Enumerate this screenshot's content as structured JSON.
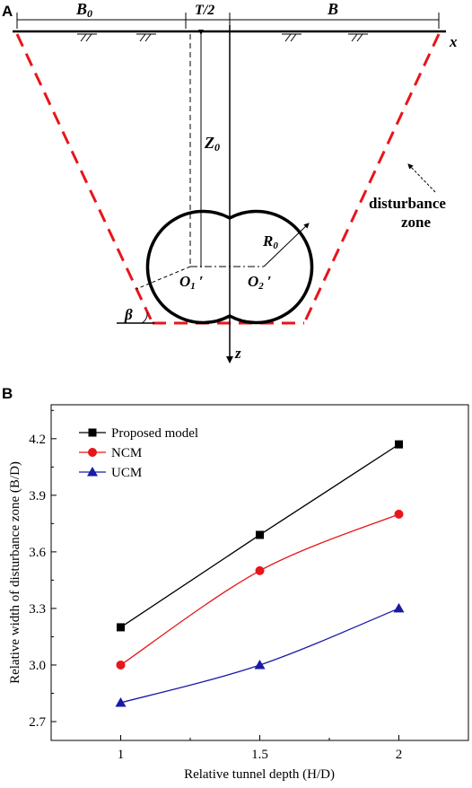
{
  "panel_a": {
    "panel_label": "A",
    "labels": {
      "b0": "B",
      "b0_sub": "0",
      "t_half": "T/2",
      "b": "B",
      "x_axis": "x",
      "z_axis": "z",
      "z0": "Z",
      "z0_sub": "0",
      "r0": "R",
      "r0_sub": "0",
      "o1": "O",
      "o1_sub": "1",
      "o1_prime": "′",
      "o2": "O",
      "o2_sub": "2",
      "o2_prime": "′",
      "beta": "β",
      "disturbance_line1": "disturbance",
      "disturbance_line2": "zone"
    },
    "colors": {
      "zone_line": "#e8151b",
      "ink": "#000000"
    }
  },
  "panel_b": {
    "panel_label": "B",
    "colors": {
      "axis": "#000000",
      "frame": "#000000"
    }
  },
  "chart_data": {
    "type": "line",
    "x": [
      1,
      1.5,
      2
    ],
    "x_tick_labels": [
      "1",
      "1.5",
      "2"
    ],
    "xlabel": "Relative tunnel depth (H/D)",
    "ylabel": "Relative width of disturbance zone (B/D)",
    "xlim": [
      0.75,
      2.25
    ],
    "ylim": [
      2.6,
      4.38
    ],
    "y_ticks": [
      2.7,
      3.0,
      3.3,
      3.6,
      3.9,
      4.2
    ],
    "y_tick_labels": [
      "2.7",
      "3.0",
      "3.3",
      "3.6",
      "3.9",
      "4.2"
    ],
    "grid": false,
    "legend_position": "top-left",
    "series": [
      {
        "name": "Proposed model",
        "values": [
          3.2,
          3.69,
          4.17
        ],
        "color": "#000000",
        "marker": "square"
      },
      {
        "name": "NCM",
        "values": [
          3.0,
          3.5,
          3.8
        ],
        "color": "#e8151b",
        "marker": "circle"
      },
      {
        "name": "UCM",
        "values": [
          2.8,
          3.0,
          3.3
        ],
        "color": "#1a1aa6",
        "marker": "triangle"
      }
    ]
  }
}
